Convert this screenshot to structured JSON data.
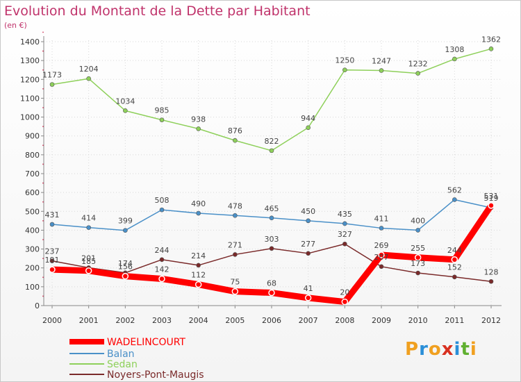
{
  "title": "Evolution du Montant de la Dette par Habitant",
  "unit": "(en €)",
  "logo": [
    "P",
    "r",
    "o",
    "x",
    "i",
    "t",
    "i"
  ],
  "logo_colors": [
    "#f0a020",
    "#2a8fd8",
    "#f0a020",
    "#d83020",
    "#2a8fd8",
    "#60b030",
    "#f0a020"
  ],
  "chart_data": {
    "type": "line",
    "x": [
      2000,
      2001,
      2002,
      2003,
      2004,
      2005,
      2006,
      2007,
      2008,
      2009,
      2010,
      2011,
      2012
    ],
    "ylim": [
      0,
      1400
    ],
    "yticks": [
      0,
      100,
      200,
      300,
      400,
      500,
      600,
      700,
      800,
      900,
      1000,
      1100,
      1200,
      1300,
      1400
    ],
    "grid": true,
    "legend_position": "bottom-left",
    "series": [
      {
        "name": "WADELINCOURT",
        "color": "#ff0000",
        "values": [
          191,
          185,
          156,
          142,
          112,
          75,
          68,
          41,
          20,
          269,
          255,
          244,
          531
        ],
        "labels": [
          "191",
          "185",
          "156",
          "142",
          "112",
          "75",
          "68",
          "41",
          "20",
          "269",
          "255",
          "244",
          "531"
        ]
      },
      {
        "name": "Balan",
        "color": "#4a90c8",
        "values": [
          431,
          414,
          399,
          508,
          490,
          478,
          465,
          450,
          435,
          411,
          400,
          562,
          519
        ],
        "labels": [
          "431",
          "414",
          "399",
          "508",
          "490",
          "478",
          "465",
          "450",
          "435",
          "411",
          "400",
          "562",
          "519"
        ]
      },
      {
        "name": "Sedan",
        "color": "#8ed05a",
        "values": [
          1173,
          1204,
          1034,
          985,
          938,
          876,
          822,
          944,
          1250,
          1247,
          1232,
          1308,
          1362
        ],
        "labels": [
          "1173",
          "1204",
          "1034",
          "985",
          "938",
          "876",
          "822",
          "944",
          "1250",
          "1247",
          "1232",
          "1308",
          "1362"
        ]
      },
      {
        "name": "Noyers-Pont-Maugis",
        "color": "#7a2a2a",
        "values": [
          237,
          201,
          174,
          244,
          214,
          271,
          303,
          277,
          327,
          207,
          173,
          152,
          128
        ],
        "labels": [
          "237",
          "201",
          "174",
          "244",
          "214",
          "271",
          "303",
          "277",
          "327",
          "207",
          "173",
          "152",
          "128"
        ]
      }
    ]
  }
}
